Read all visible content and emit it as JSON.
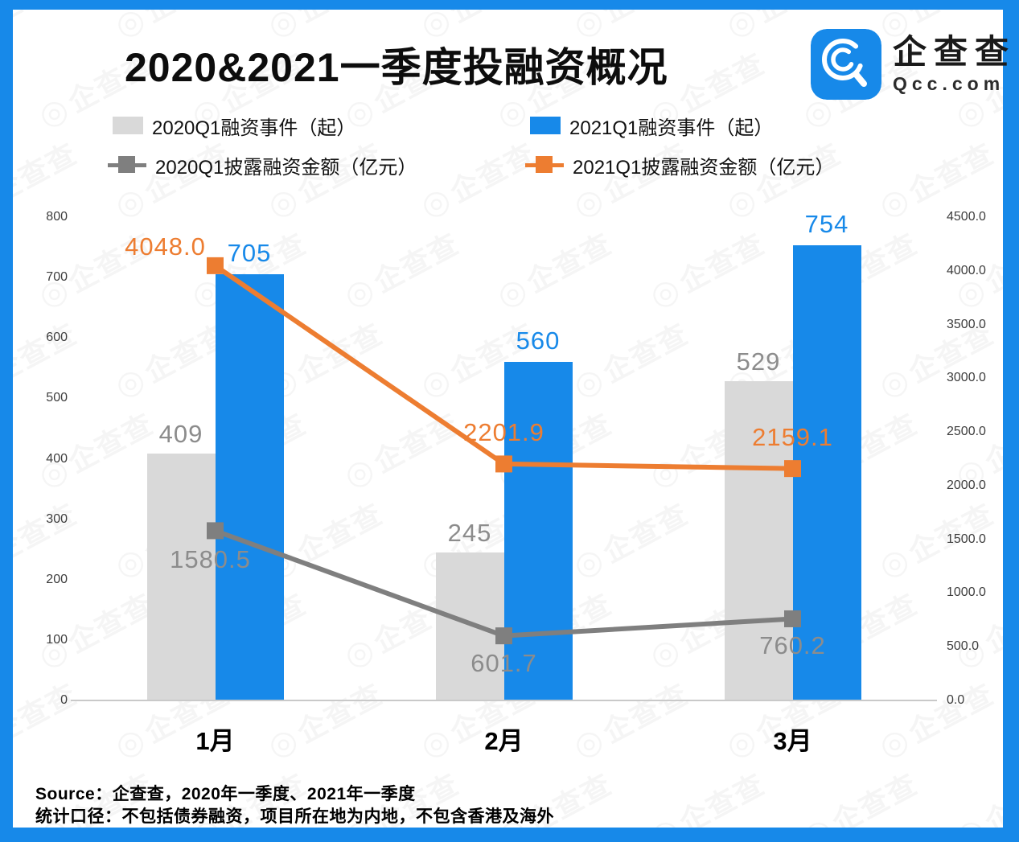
{
  "frame": {
    "border_color": "#1789E9"
  },
  "header": {
    "title": "2020&2021一季度投融资概况",
    "logo": {
      "brand": "企查查",
      "domain": "Qcc.com",
      "badge_color": "#1789E9"
    }
  },
  "legend": [
    {
      "label": "2020Q1融资事件（起）",
      "type": "bar",
      "color": "#D9D9D9"
    },
    {
      "label": "2021Q1融资事件（起）",
      "type": "bar",
      "color": "#1789E9"
    },
    {
      "label": "2020Q1披露融资金额（亿元）",
      "type": "line",
      "color": "#7F7F7F"
    },
    {
      "label": "2021Q1披露融资金额（亿元）",
      "type": "line",
      "color": "#ED7D31"
    }
  ],
  "chart_data": {
    "type": "bar+line",
    "categories": [
      "1月",
      "2月",
      "3月"
    ],
    "series": [
      {
        "name": "2020Q1融资事件（起）",
        "type": "bar",
        "axis": "left",
        "color": "#D9D9D9",
        "label_color": "#8C8C8C",
        "values": [
          409,
          245,
          529
        ]
      },
      {
        "name": "2021Q1融资事件（起）",
        "type": "bar",
        "axis": "left",
        "color": "#1789E9",
        "label_color": "#1789E9",
        "values": [
          705,
          560,
          754
        ]
      },
      {
        "name": "2020Q1披露融资金额（亿元）",
        "type": "line",
        "axis": "right",
        "color": "#7F7F7F",
        "label_color": "#8C8C8C",
        "values": [
          1580.5,
          601.7,
          760.2
        ]
      },
      {
        "name": "2021Q1披露融资金额（亿元）",
        "type": "line",
        "axis": "right",
        "color": "#ED7D31",
        "label_color": "#ED7D31",
        "values": [
          4048.0,
          2201.9,
          2159.1
        ]
      }
    ],
    "left_axis": {
      "min": 0,
      "max": 800,
      "step": 100,
      "decimals": 0
    },
    "right_axis": {
      "min": 0,
      "max": 4500,
      "step": 500,
      "decimals": 1
    },
    "grid": false,
    "legend_position": "top"
  },
  "footer": {
    "source_line": "Source：企查查，2020年一季度、2021年一季度",
    "caliber_line": "统计口径：不包括债券融资，项目所在地为内地，不包含香港及海外"
  },
  "watermark": {
    "icon": "◎",
    "text": "企查查"
  }
}
